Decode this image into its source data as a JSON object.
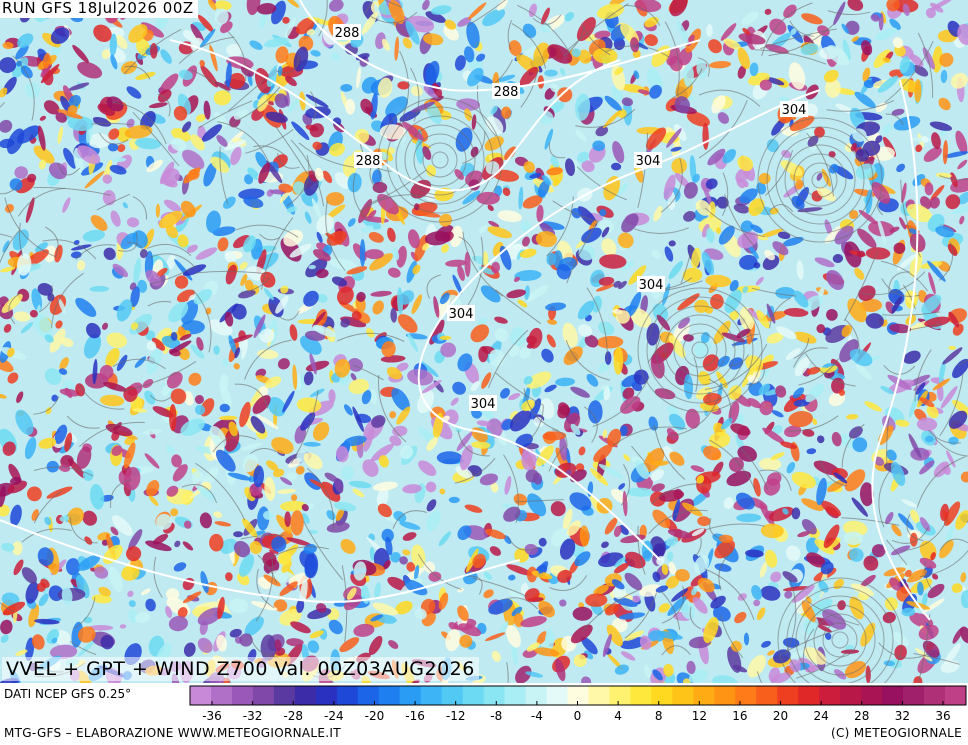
{
  "header": {
    "run": "RUN GFS 18Jul2026 00Z"
  },
  "map": {
    "contour_labels": [
      "288",
      "288",
      "288",
      "304",
      "304",
      "304",
      "304",
      "304"
    ]
  },
  "title": "VVEL + GPT + WIND Z700 Val. 00Z03AUG2026",
  "source": "DATI NCEP GFS 0.25°",
  "colorbar": {
    "labels": [
      -36,
      -32,
      -28,
      -24,
      -20,
      -16,
      -12,
      -8,
      -4,
      0,
      4,
      8,
      12,
      16,
      20,
      24,
      28,
      32,
      36
    ],
    "colors": [
      "#c88ad8",
      "#b070c8",
      "#9a58b8",
      "#8048a8",
      "#5a3aa0",
      "#3c2ca8",
      "#2a30c0",
      "#1e48d8",
      "#1c64e8",
      "#1e80f0",
      "#2a9cf4",
      "#3cb4f6",
      "#52c8f4",
      "#6cdaf2",
      "#8ae6f2",
      "#a8eef4",
      "#c8f4f6",
      "#e4faf8",
      "#fffde0",
      "#fff8a8",
      "#fff270",
      "#ffe83c",
      "#ffd820",
      "#ffc418",
      "#ffac14",
      "#ff9414",
      "#ff7a18",
      "#f85e1c",
      "#ee4020",
      "#e02828",
      "#cc1e3c",
      "#b81848",
      "#a81454",
      "#981060",
      "#a0206c",
      "#b03078",
      "#c04088"
    ]
  },
  "footer": {
    "left": "MTG-GFS – ELABORAZIONE WWW.METEOGIORNALE.IT",
    "right": "(C) METEOGIORNALE"
  }
}
